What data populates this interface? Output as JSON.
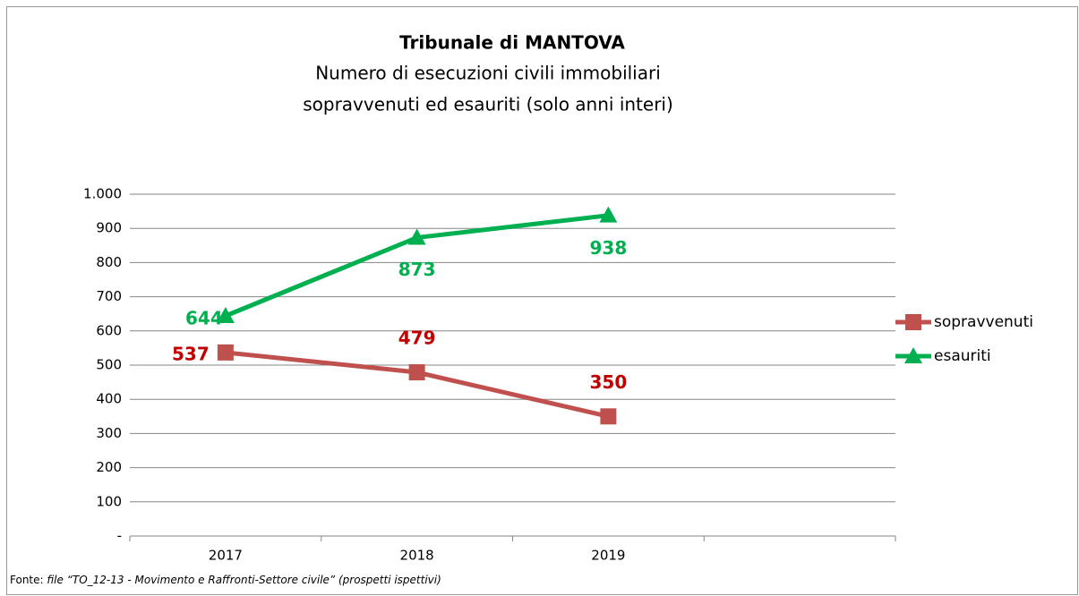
{
  "chart_data": {
    "type": "line",
    "title": "Tribunale di MANTOVA",
    "subtitle": [
      "Numero di esecuzioni civili immobiliari",
      "sopravvenuti ed esauriti (solo anni interi)"
    ],
    "categories": [
      "2017",
      "2018",
      "2019",
      null
    ],
    "series": [
      {
        "name": "sopravvenuti",
        "color": "#c0504d",
        "label_color": "#c00000",
        "marker": "square",
        "values": [
          537,
          479,
          350,
          null
        ]
      },
      {
        "name": "esauriti",
        "color": "#00b050",
        "label_color": "#00b050",
        "marker": "triangle",
        "values": [
          644,
          873,
          938,
          null
        ]
      }
    ],
    "ylim": [
      0,
      1000
    ],
    "yticks": [
      {
        "value": 0,
        "label": "-"
      },
      100,
      200,
      300,
      400,
      500,
      600,
      700,
      800,
      900,
      {
        "value": 1000,
        "label": "1.000"
      }
    ],
    "grid": true,
    "legend": "right",
    "source": {
      "label": "Fonte:",
      "text": "file “TO_12-13 - Movimento e Raffronti-Settore civile” (prospetti ispettivi)"
    }
  }
}
